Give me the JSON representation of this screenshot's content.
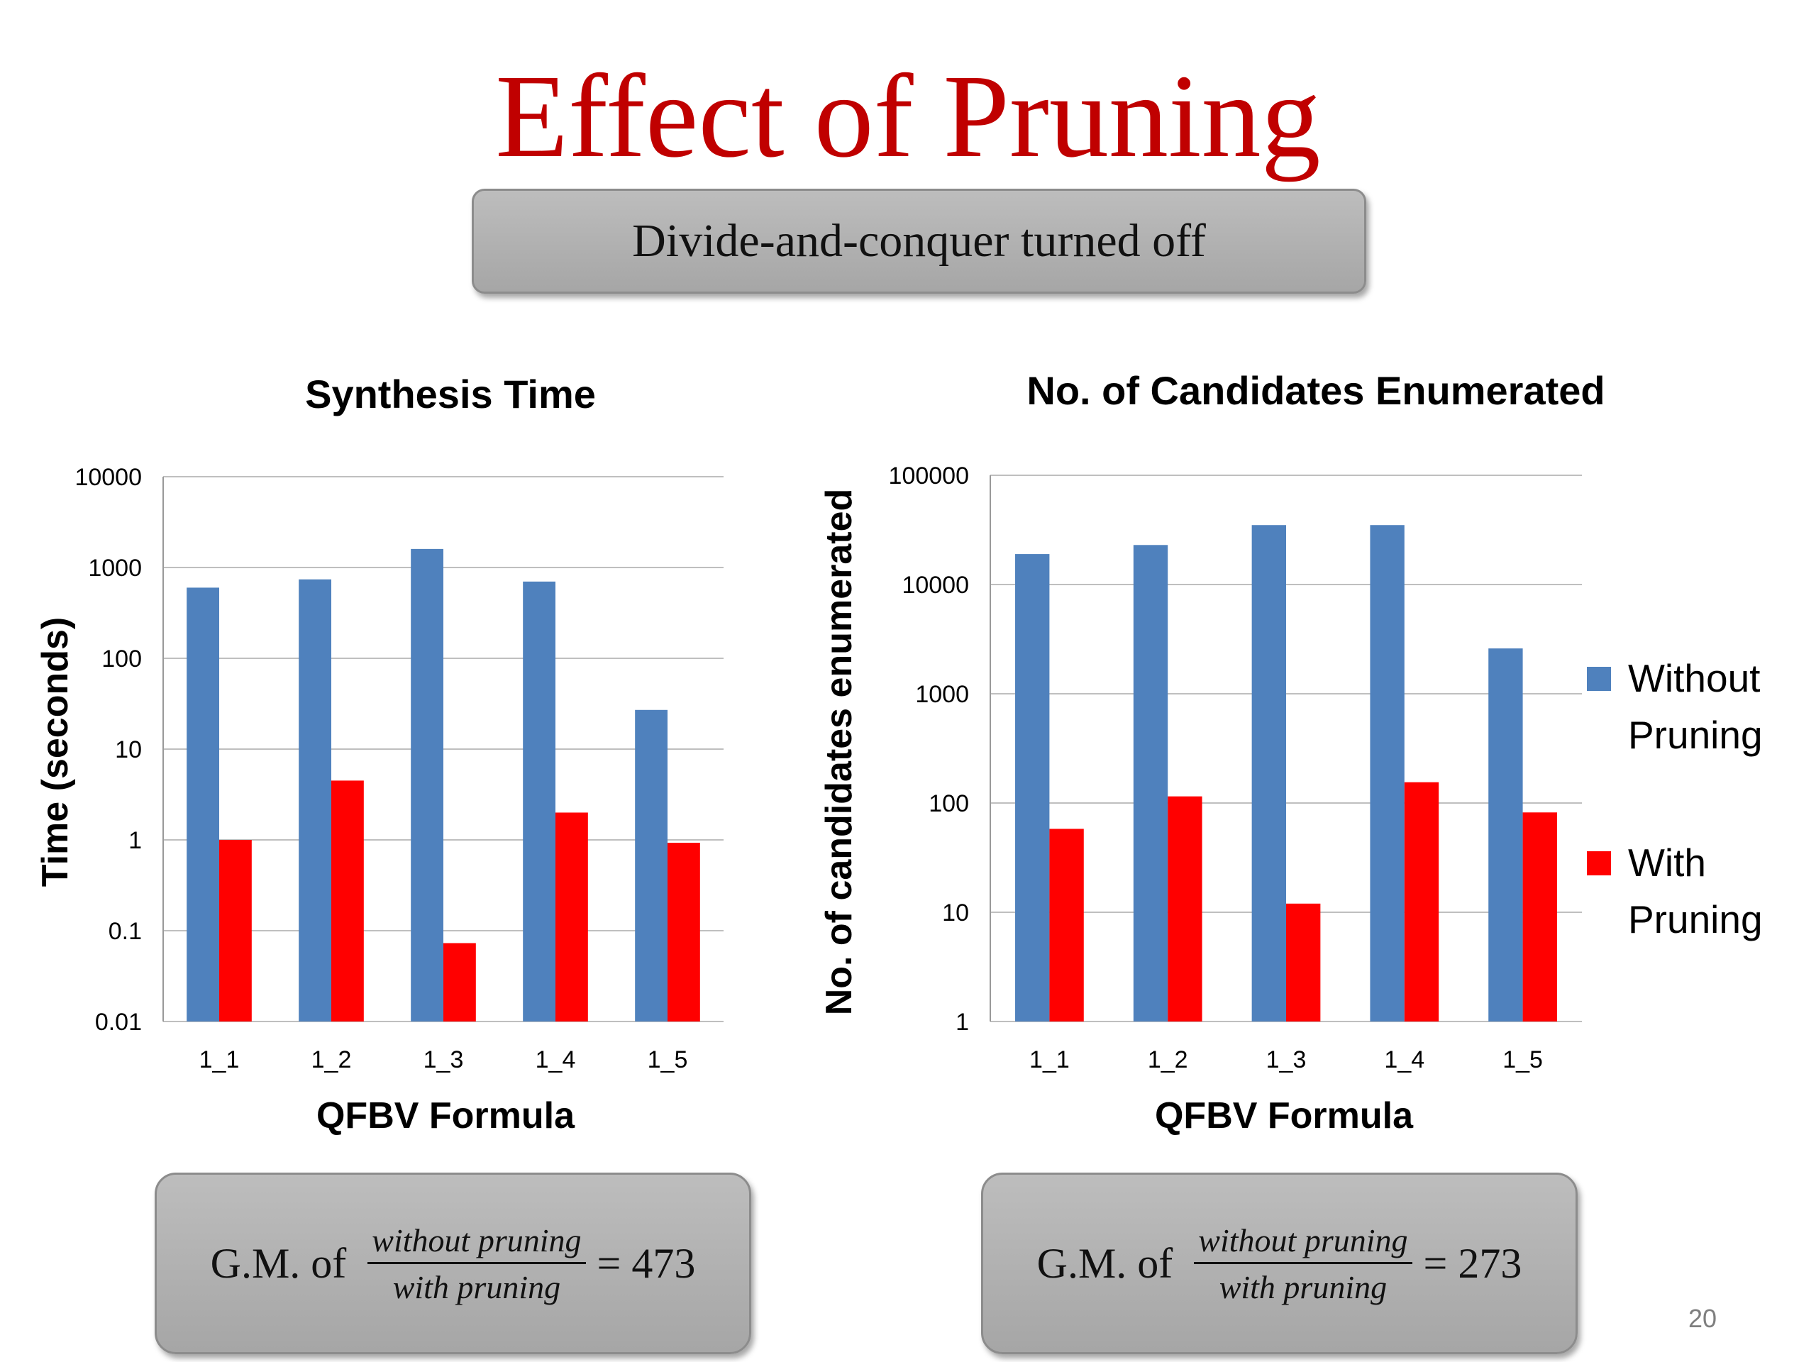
{
  "slide": {
    "title": "Effect of Pruning",
    "subtitle": "Divide-and-conquer turned off",
    "page_number": "20"
  },
  "colors": {
    "title": "#c00000",
    "without": "#4f81bd",
    "with": "#ff0000",
    "grid": "#bfbfbf"
  },
  "legend": {
    "without": [
      "Without",
      "Pruning"
    ],
    "with": [
      "With",
      "Pruning"
    ]
  },
  "chart_data": [
    {
      "type": "bar",
      "title": "Synthesis Time",
      "xlabel": "QFBV Formula",
      "ylabel": "Time (seconds)",
      "yscale": "log",
      "ylim": [
        0.01,
        10000
      ],
      "yticks": [
        "0.01",
        "0.1",
        "1",
        "10",
        "100",
        "1000",
        "10000"
      ],
      "categories": [
        "1_1",
        "1_2",
        "1_3",
        "1_4",
        "1_5"
      ],
      "series": [
        {
          "name": "Without Pruning",
          "values": [
            600,
            740,
            1600,
            700,
            27
          ]
        },
        {
          "name": "With Pruning",
          "values": [
            1.0,
            4.5,
            0.073,
            2.0,
            0.93
          ]
        }
      ],
      "grid": true
    },
    {
      "type": "bar",
      "title": "No. of Candidates Enumerated",
      "xlabel": "QFBV Formula",
      "ylabel": "No. of candidates enumerated",
      "yscale": "log",
      "ylim": [
        1,
        100000
      ],
      "yticks": [
        "1",
        "10",
        "100",
        "1000",
        "10000",
        "100000"
      ],
      "categories": [
        "1_1",
        "1_2",
        "1_3",
        "1_4",
        "1_5"
      ],
      "series": [
        {
          "name": "Without Pruning",
          "values": [
            19000,
            23000,
            35000,
            35000,
            2600
          ]
        },
        {
          "name": "With Pruning",
          "values": [
            58,
            115,
            12,
            155,
            82
          ]
        }
      ],
      "grid": true,
      "legend": "right"
    }
  ],
  "gm_boxes": [
    {
      "prefix": "G.M. of",
      "numerator": "without pruning",
      "denominator": "with pruning",
      "result": "= 473"
    },
    {
      "prefix": "G.M. of",
      "numerator": "without pruning",
      "denominator": "with pruning",
      "result": "= 273"
    }
  ]
}
